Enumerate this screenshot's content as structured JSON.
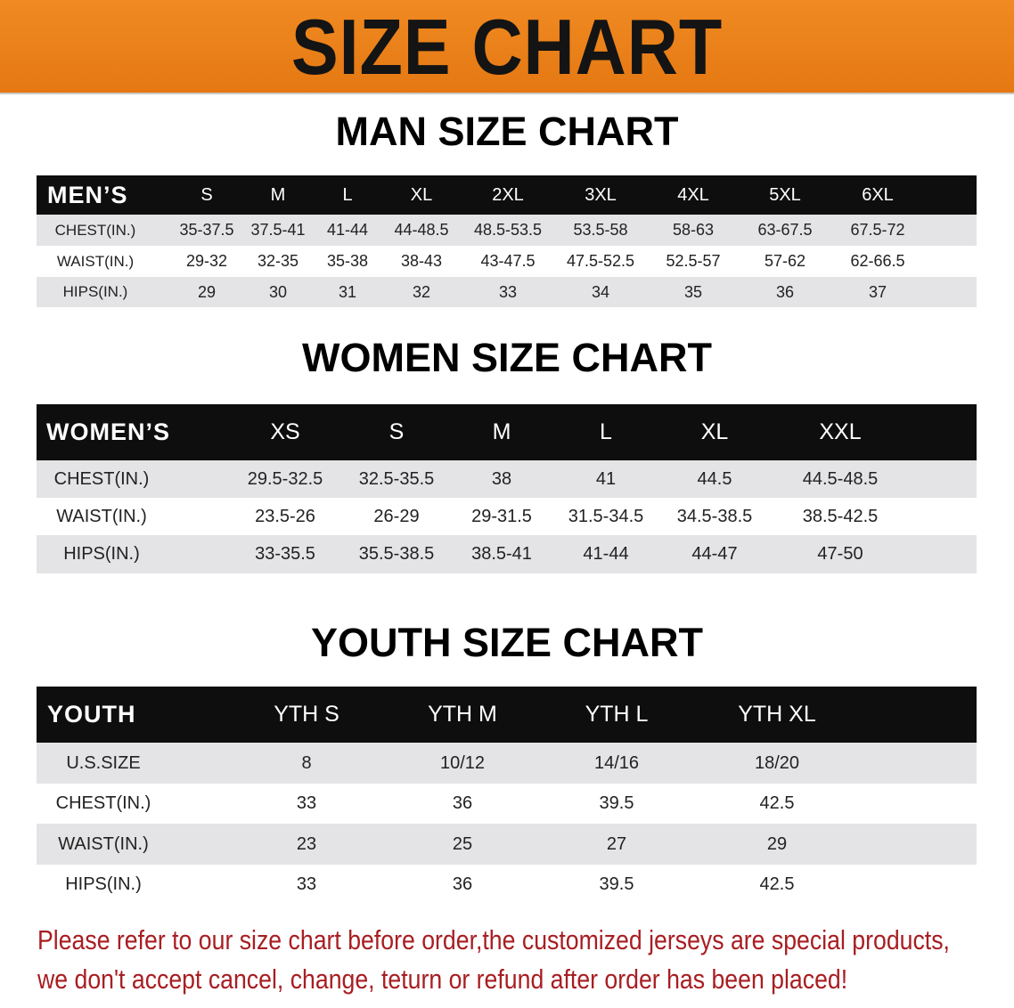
{
  "banner_title": "SIZE CHART",
  "men": {
    "title": "MAN SIZE CHART",
    "header_label": "MEN’S",
    "sizes": [
      "S",
      "M",
      "L",
      "XL",
      "2XL",
      "3XL",
      "4XL",
      "5XL",
      "6XL"
    ],
    "rows": [
      {
        "label": "CHEST(IN.)",
        "values": [
          "35-37.5",
          "37.5-41",
          "41-44",
          "44-48.5",
          "48.5-53.5",
          "53.5-58",
          "58-63",
          "63-67.5",
          "67.5-72"
        ]
      },
      {
        "label": "WAIST(IN.)",
        "values": [
          "29-32",
          "32-35",
          "35-38",
          "38-43",
          "43-47.5",
          "47.5-52.5",
          "52.5-57",
          "57-62",
          "62-66.5"
        ]
      },
      {
        "label": "HIPS(IN.)",
        "values": [
          "29",
          "30",
          "31",
          "32",
          "33",
          "34",
          "35",
          "36",
          "37"
        ]
      }
    ]
  },
  "women": {
    "title": "WOMEN SIZE CHART",
    "header_label": "WOMEN’S",
    "sizes": [
      "XS",
      "S",
      "M",
      "L",
      "XL",
      "XXL"
    ],
    "rows": [
      {
        "label": "CHEST(IN.)",
        "values": [
          "29.5-32.5",
          "32.5-35.5",
          "38",
          "41",
          "44.5",
          "44.5-48.5"
        ]
      },
      {
        "label": "WAIST(IN.)",
        "values": [
          "23.5-26",
          "26-29",
          "29-31.5",
          "31.5-34.5",
          "34.5-38.5",
          "38.5-42.5"
        ]
      },
      {
        "label": "HIPS(IN.)",
        "values": [
          "33-35.5",
          "35.5-38.5",
          "38.5-41",
          "41-44",
          "44-47",
          "47-50"
        ]
      }
    ]
  },
  "youth": {
    "title": "YOUTH SIZE CHART",
    "header_label": "YOUTH",
    "sizes": [
      "YTH S",
      "YTH M",
      "YTH L",
      "YTH XL"
    ],
    "rows": [
      {
        "label": "U.S.SIZE",
        "values": [
          "8",
          "10/12",
          "14/16",
          "18/20"
        ]
      },
      {
        "label": "CHEST(IN.)",
        "values": [
          "33",
          "36",
          "39.5",
          "42.5"
        ]
      },
      {
        "label": "WAIST(IN.)",
        "values": [
          "23",
          "25",
          "27",
          "29"
        ]
      },
      {
        "label": "HIPS(IN.)",
        "values": [
          "33",
          "36",
          "39.5",
          "42.5"
        ]
      }
    ]
  },
  "notice": {
    "line1": "Please refer to our size chart before order,the customized jerseys are special products,",
    "line2": "we don't accept cancel, change, teturn or refund after order has been placed!"
  },
  "colors": {
    "banner": "#ec8219",
    "header": "#0e0e0e",
    "stripe": "#e4e4e6",
    "notice": "#a81e22"
  }
}
